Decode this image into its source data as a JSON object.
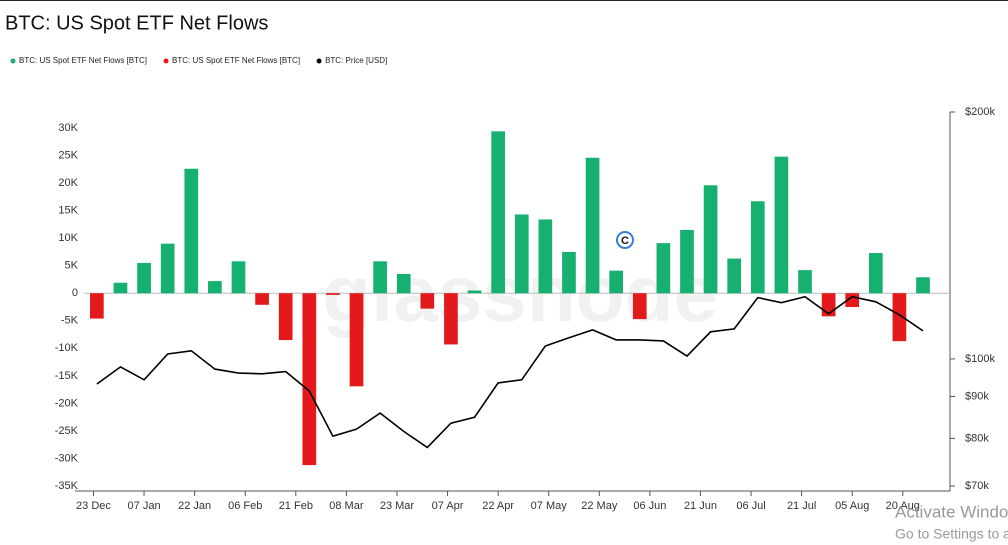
{
  "chart_data": {
    "type": "bar",
    "title": "BTC: US Spot ETF Net Flows",
    "watermark": "glassnode",
    "x": [
      1,
      8,
      15,
      22,
      29,
      36,
      43,
      50,
      57,
      64,
      71,
      78,
      85,
      92,
      99,
      106,
      113,
      120,
      127,
      134,
      141,
      148,
      155,
      162,
      169,
      176,
      183,
      190,
      197,
      204,
      211,
      218,
      225,
      232,
      239,
      246
    ],
    "xlim": [
      -4,
      254
    ],
    "xticks": [
      {
        "value": 0,
        "label": "23 Dec"
      },
      {
        "value": 15,
        "label": "07 Jan"
      },
      {
        "value": 30,
        "label": "22 Jan"
      },
      {
        "value": 45,
        "label": "06 Feb"
      },
      {
        "value": 60,
        "label": "21 Feb"
      },
      {
        "value": 75,
        "label": "08 Mar"
      },
      {
        "value": 90,
        "label": "23 Mar"
      },
      {
        "value": 105,
        "label": "07 Apr"
      },
      {
        "value": 120,
        "label": "22 Apr"
      },
      {
        "value": 135,
        "label": "07 May"
      },
      {
        "value": 150,
        "label": "22 May"
      },
      {
        "value": 165,
        "label": "06 Jun"
      },
      {
        "value": 180,
        "label": "21 Jun"
      },
      {
        "value": 195,
        "label": "06 Jul"
      },
      {
        "value": 210,
        "label": "21 Jul"
      },
      {
        "value": 225,
        "label": "05 Aug"
      },
      {
        "value": 240,
        "label": "20 Aug"
      }
    ],
    "ylim": [
      -35000,
      30000
    ],
    "yticks": [
      {
        "value": -35000,
        "label": "-35K"
      },
      {
        "value": -30000,
        "label": "-30K"
      },
      {
        "value": -25000,
        "label": "-25K"
      },
      {
        "value": -20000,
        "label": "-20K"
      },
      {
        "value": -15000,
        "label": "-15K"
      },
      {
        "value": -10000,
        "label": "-10K"
      },
      {
        "value": -5000,
        "label": "-5K"
      },
      0,
      {
        "value": 5000,
        "label": "5K"
      },
      {
        "value": 10000,
        "label": "10K"
      },
      {
        "value": 15000,
        "label": "15K"
      },
      {
        "value": 20000,
        "label": "20K"
      },
      {
        "value": 25000,
        "label": "25K"
      },
      {
        "value": 30000,
        "label": "30K"
      }
    ],
    "y2lim": [
      70000,
      200000
    ],
    "y2log": true,
    "y2ticks": [
      {
        "value": 70000,
        "label": "$70k"
      },
      {
        "value": 80000,
        "label": "$80k"
      },
      {
        "value": 90000,
        "label": "$90k"
      },
      {
        "value": 100000,
        "label": "$100k"
      },
      {
        "value": 200000,
        "label": "$200k"
      }
    ],
    "grid": false,
    "legend": "top-left",
    "series": [
      {
        "name": "BTC: US Spot ETF Net Flows [BTC]",
        "color": "#16b170",
        "values": [
          null,
          1900,
          5500,
          9000,
          22600,
          2200,
          5800,
          null,
          null,
          null,
          null,
          null,
          5800,
          3500,
          null,
          null,
          500,
          29400,
          14300,
          13400,
          7500,
          24600,
          4100,
          null,
          9100,
          11500,
          19600,
          6300,
          16700,
          24800,
          4200,
          null,
          null,
          7300,
          null,
          2900
        ]
      },
      {
        "name": "BTC: US Spot ETF Net Flows [BTC]",
        "color": "#e3191b",
        "values": [
          -4600,
          null,
          null,
          null,
          null,
          null,
          null,
          -2100,
          -8500,
          -31200,
          -300,
          -16900,
          null,
          null,
          -2800,
          -9300,
          null,
          null,
          null,
          null,
          null,
          null,
          null,
          -4700,
          null,
          null,
          null,
          null,
          null,
          null,
          null,
          -4200,
          -2500,
          null,
          -8700,
          null
        ]
      },
      {
        "name": "BTC: Price [USD]",
        "color": "#000000",
        "type": "line",
        "axis": "y2",
        "values": [
          93200,
          97800,
          94300,
          101400,
          102300,
          97200,
          96100,
          95900,
          96500,
          91400,
          80500,
          82100,
          85900,
          81600,
          78000,
          83500,
          84900,
          93500,
          94300,
          103700,
          106100,
          108500,
          105500,
          105500,
          105200,
          100800,
          107900,
          108800,
          118800,
          117100,
          119100,
          113500,
          119100,
          117400,
          113200,
          108200
        ]
      }
    ]
  },
  "os_notice": {
    "line1": "Activate Windows",
    "line2": "Go to Settings to activate Windows."
  }
}
